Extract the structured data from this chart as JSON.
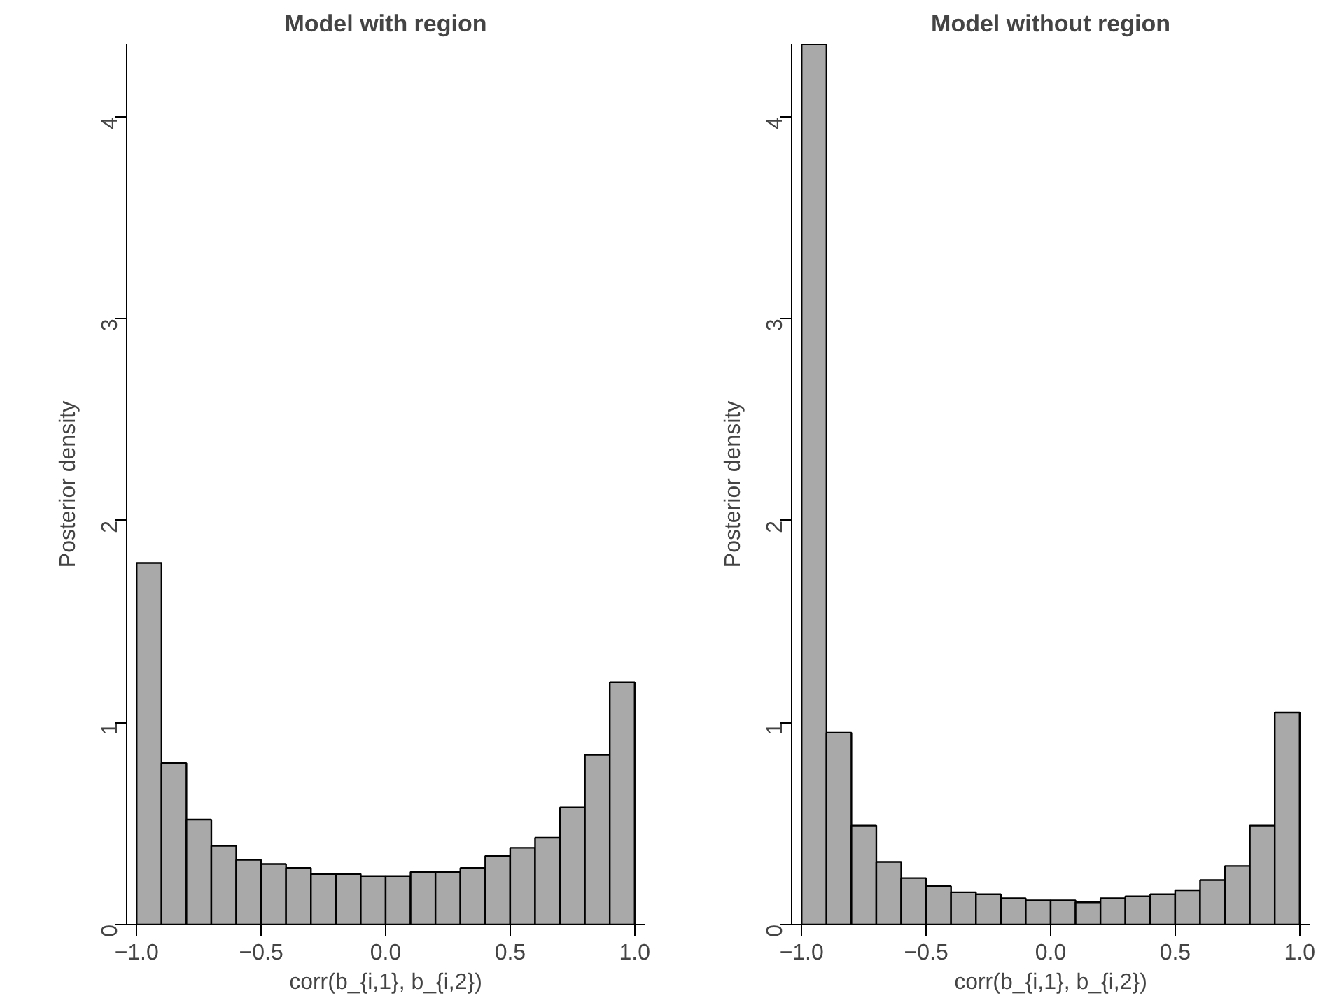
{
  "chart_data": [
    {
      "type": "histogram",
      "title": "Model with region",
      "xlabel": "corr(b_{i,1}, b_{i,2})",
      "ylabel": "Posterior density",
      "color": "#a9a9a9",
      "bins": [
        -1.0,
        -0.9,
        -0.8,
        -0.7,
        -0.6,
        -0.5,
        -0.4,
        -0.3,
        -0.2,
        -0.1,
        0.0,
        0.1,
        0.2,
        0.3,
        0.4,
        0.5,
        0.6,
        0.7,
        0.8,
        0.9,
        1.0
      ],
      "values": [
        1.79,
        0.8,
        0.52,
        0.39,
        0.32,
        0.3,
        0.28,
        0.25,
        0.25,
        0.24,
        0.24,
        0.26,
        0.26,
        0.28,
        0.34,
        0.38,
        0.43,
        0.58,
        0.84,
        1.2
      ],
      "xlim": [
        -1.04,
        1.04
      ],
      "ylim": [
        0,
        4.36
      ],
      "xticks": [
        {
          "value": -1.0,
          "label": "−1.0"
        },
        {
          "value": -0.5,
          "label": "−0.5"
        },
        {
          "value": 0,
          "label": "0.0"
        },
        {
          "value": 0.5,
          "label": "0.5"
        },
        {
          "value": 1.0,
          "label": "1.0"
        }
      ],
      "yticks": [
        0,
        1,
        2,
        3,
        4
      ],
      "grid": false
    },
    {
      "type": "histogram",
      "title": "Model without region",
      "xlabel": "corr(b_{i,1}, b_{i,2})",
      "ylabel": "Posterior density",
      "color": "#a9a9a9",
      "bins": [
        -1.0,
        -0.9,
        -0.8,
        -0.7,
        -0.6,
        -0.5,
        -0.4,
        -0.3,
        -0.2,
        -0.1,
        0.0,
        0.1,
        0.2,
        0.3,
        0.4,
        0.5,
        0.6,
        0.7,
        0.8,
        0.9,
        1.0
      ],
      "values": [
        4.36,
        0.95,
        0.49,
        0.31,
        0.23,
        0.19,
        0.16,
        0.15,
        0.13,
        0.12,
        0.12,
        0.11,
        0.13,
        0.14,
        0.15,
        0.17,
        0.22,
        0.29,
        0.49,
        1.05
      ],
      "xlim": [
        -1.04,
        1.04
      ],
      "ylim": [
        0,
        4.36
      ],
      "xticks": [
        {
          "value": -1.0,
          "label": "−1.0"
        },
        {
          "value": -0.5,
          "label": "−0.5"
        },
        {
          "value": 0,
          "label": "0.0"
        },
        {
          "value": 0.5,
          "label": "0.5"
        },
        {
          "value": 1.0,
          "label": "1.0"
        }
      ],
      "yticks": [
        0,
        1,
        2,
        3,
        4
      ],
      "grid": false
    }
  ]
}
